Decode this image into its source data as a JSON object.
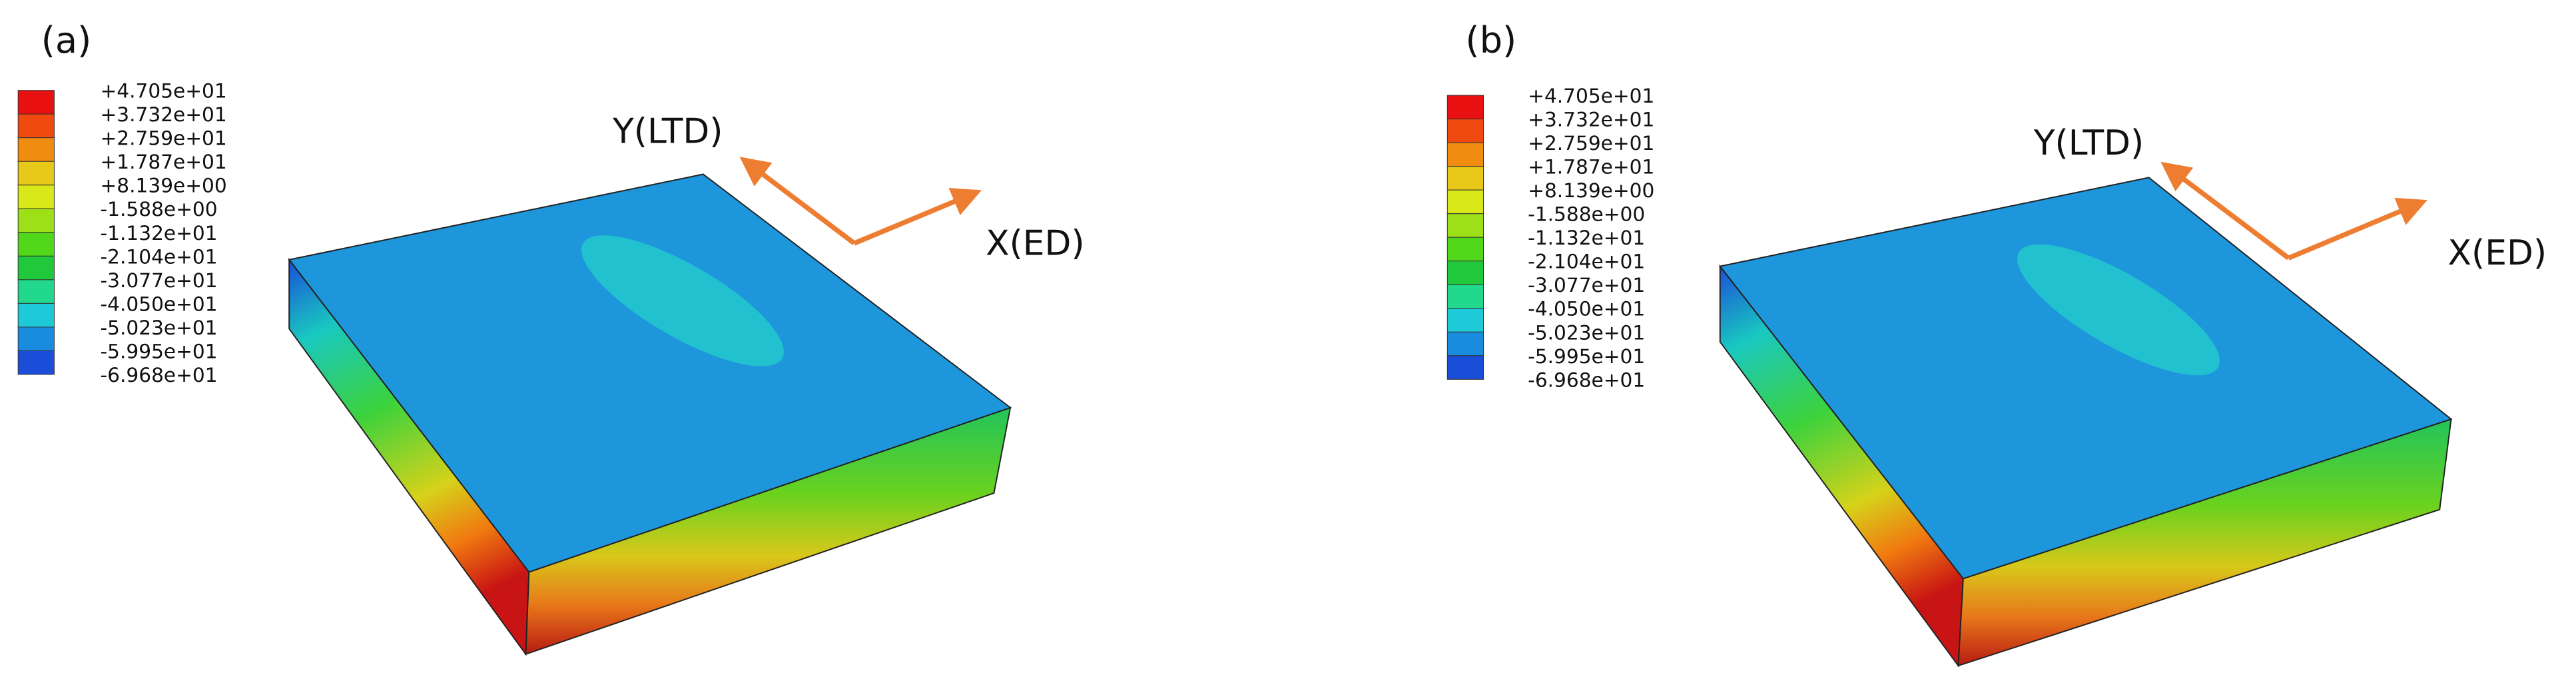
{
  "panels": [
    {
      "label": "(a)",
      "legend": [
        "+4.705e+01",
        "+3.732e+01",
        "+2.759e+01",
        "+1.787e+01",
        "+8.139e+00",
        "-1.588e+00",
        "-1.132e+01",
        "-2.104e+01",
        "-3.077e+01",
        "-4.050e+01",
        "-5.023e+01",
        "-5.995e+01",
        "-6.968e+01"
      ],
      "y_axis": "Y(LTD)",
      "x_axis": "X(ED)"
    },
    {
      "label": "(b)",
      "legend": [
        "+4.705e+01",
        "+3.732e+01",
        "+2.759e+01",
        "+1.787e+01",
        "+8.139e+00",
        "-1.588e+00",
        "-1.132e+01",
        "-2.104e+01",
        "-3.077e+01",
        "-4.050e+01",
        "-5.023e+01",
        "-5.995e+01",
        "-6.968e+01"
      ],
      "y_axis": "Y(LTD)",
      "x_axis": "X(ED)"
    }
  ]
}
